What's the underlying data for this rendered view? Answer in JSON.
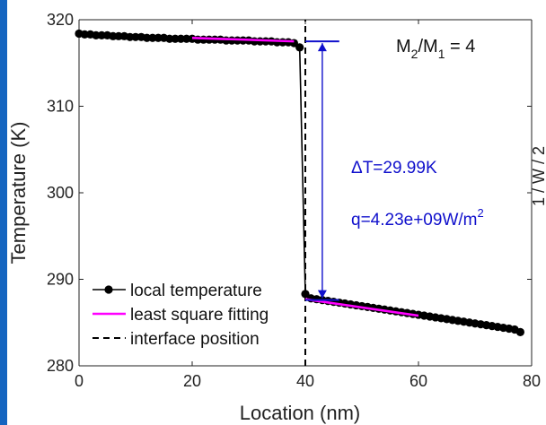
{
  "colors": {
    "left_strip": "#1565c0",
    "temperature": "#000000",
    "fit": "#ff00ff",
    "annotation": "#1010cc",
    "interface": "#000000"
  },
  "chart_data": {
    "type": "line",
    "xlabel": "Location (nm)",
    "ylabel": "Temperature (K)",
    "xlim": [
      0,
      80
    ],
    "ylim": [
      280,
      320
    ],
    "xticks": [
      "0",
      "20",
      "40",
      "60",
      "80"
    ],
    "yticks": [
      "280",
      "290",
      "300",
      "310",
      "320"
    ],
    "grid": false,
    "legend_position": "bottom-left",
    "ratio_label": {
      "base": "M",
      "sub1": "2",
      "slash": "/",
      "sub2": "1",
      "tail": " = 4"
    },
    "series": [
      {
        "name": "local temperature",
        "x": [
          0,
          1,
          2,
          3,
          4,
          5,
          6,
          7,
          8,
          9,
          10,
          11,
          12,
          13,
          14,
          15,
          16,
          17,
          18,
          19,
          20,
          21,
          22,
          23,
          24,
          25,
          26,
          27,
          28,
          29,
          30,
          31,
          32,
          33,
          34,
          35,
          36,
          37,
          38,
          39,
          40,
          41,
          42,
          43,
          44,
          45,
          46,
          47,
          48,
          49,
          50,
          51,
          52,
          53,
          54,
          55,
          56,
          57,
          58,
          59,
          60,
          61,
          62,
          63,
          64,
          65,
          66,
          67,
          68,
          69,
          70,
          71,
          72,
          73,
          74,
          75,
          76,
          77,
          78
        ],
        "y": [
          318.4,
          318.3,
          318.3,
          318.2,
          318.2,
          318.2,
          318.1,
          318.1,
          318.1,
          318.0,
          318.0,
          318.0,
          317.9,
          317.9,
          317.9,
          317.9,
          317.8,
          317.8,
          317.8,
          317.8,
          317.8,
          317.7,
          317.7,
          317.7,
          317.7,
          317.7,
          317.6,
          317.6,
          317.6,
          317.6,
          317.6,
          317.5,
          317.5,
          317.5,
          317.5,
          317.4,
          317.4,
          317.4,
          317.3,
          316.8,
          288.3,
          287.8,
          287.7,
          287.6,
          287.5,
          287.4,
          287.3,
          287.2,
          287.1,
          287.0,
          286.9,
          286.8,
          286.7,
          286.6,
          286.5,
          286.4,
          286.3,
          286.2,
          286.1,
          286.0,
          285.9,
          285.8,
          285.7,
          285.6,
          285.5,
          285.4,
          285.3,
          285.2,
          285.1,
          285.0,
          284.9,
          284.8,
          284.7,
          284.6,
          284.5,
          284.4,
          284.3,
          284.2,
          283.9
        ]
      },
      {
        "name": "least square fitting",
        "segments": [
          {
            "x": [
              20,
              38
            ],
            "y": [
              317.9,
              317.5
            ]
          },
          {
            "x": [
              40,
              60
            ],
            "y": [
              287.7,
              285.8
            ]
          }
        ]
      },
      {
        "name": "interface position",
        "x": [
          40,
          40
        ],
        "y": [
          280,
          320
        ]
      }
    ],
    "annotation": {
      "delta_label": "ΔT=29.99K",
      "flux_label_main": "q=4.23e+09W/m",
      "flux_label_sup": "2",
      "arrow_x": 43,
      "top_y": 317.5,
      "bottom_y": 287.6,
      "top_bar_x": [
        40,
        46
      ],
      "bottom_bar_x": [
        40,
        46
      ]
    },
    "right_axis_fragment": "1 / W / 2"
  }
}
